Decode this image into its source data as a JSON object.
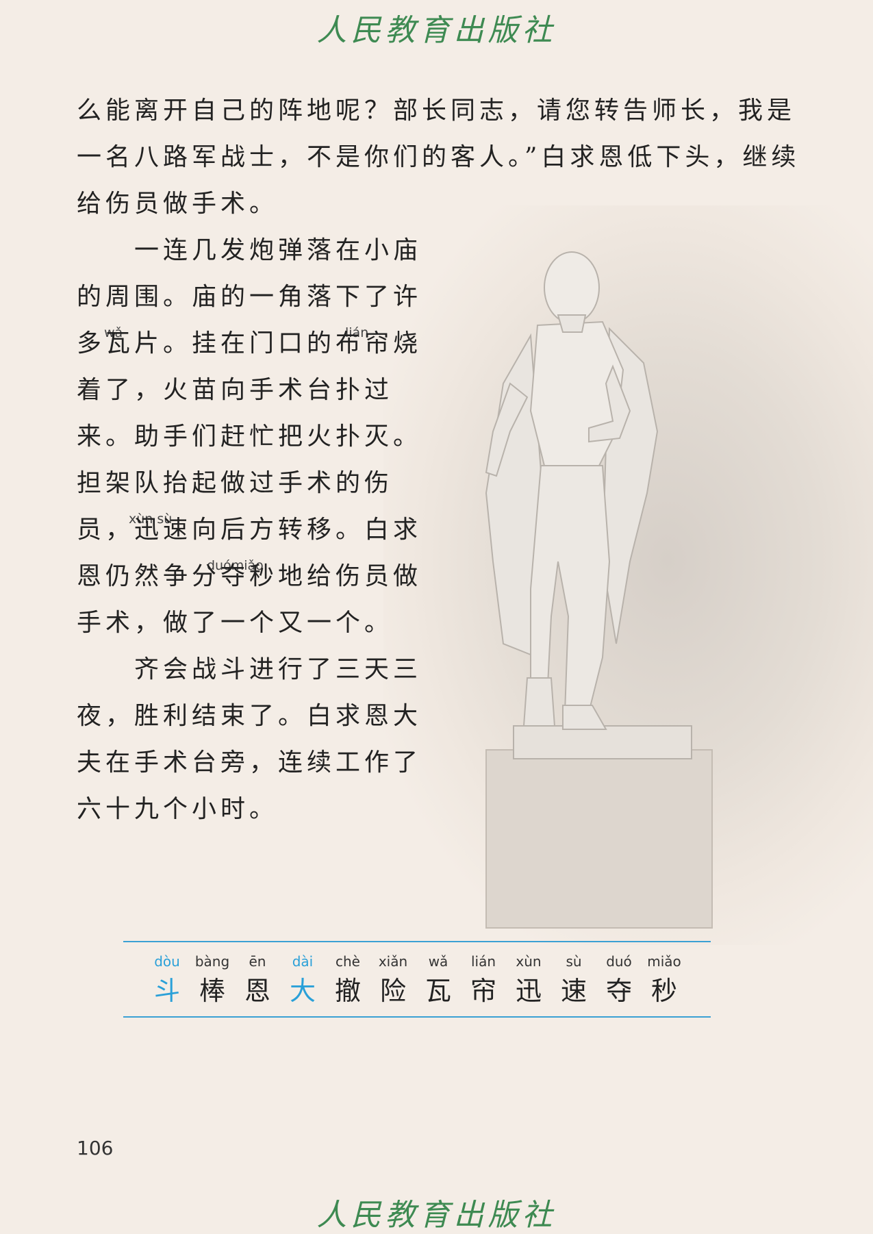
{
  "header": {
    "publisher": "人民教育出版社"
  },
  "photo": {
    "subject": "statue"
  },
  "paragraphs": {
    "lines": [
      "么能离开自己的阵地呢？部长同志，请您转告师长，我是",
      "一名八路军战士，不是你们的客人。”白求恩低下头，继续",
      "给伤员做手术。",
      "　　一连几发炮弹落在小庙",
      "的周围。庙的一角落下了许",
      "多瓦片。挂在门口的布帘烧",
      "着了，火苗向手术台扑过",
      "来。助手们赶忙把火扑灭。",
      "担架队抬起做过手术的伤",
      "员，迅速向后方转移。白求",
      "恩仍然争分夺秒地给伤员做",
      "手术，做了一个又一个。",
      "　　齐会战斗进行了三天三",
      "夜，胜利结束了。白求恩大",
      "夫在手术台旁，连续工作了",
      "六十九个小时。"
    ],
    "annotations": {
      "wa": "wǎ",
      "lian": "lián",
      "xunsu": "xùn sù",
      "duomiao": "duómiǎo"
    }
  },
  "vocabulary": [
    {
      "pinyin": "dòu",
      "char": "斗"
    },
    {
      "pinyin": "bàng",
      "char": "棒"
    },
    {
      "pinyin": "ēn",
      "char": "恩"
    },
    {
      "pinyin": "dài",
      "char": "大"
    },
    {
      "pinyin": "chè",
      "char": "撤"
    },
    {
      "pinyin": "xiǎn",
      "char": "险"
    },
    {
      "pinyin": "wǎ",
      "char": "瓦"
    },
    {
      "pinyin": "lián",
      "char": "帘"
    },
    {
      "pinyin": "xùn",
      "char": "迅"
    },
    {
      "pinyin": "sù",
      "char": "速"
    },
    {
      "pinyin": "duó",
      "char": "夺"
    },
    {
      "pinyin": "miǎo",
      "char": "秒"
    }
  ],
  "footer": {
    "page_number": "106",
    "publisher": "人民教育出版社"
  },
  "colors": {
    "highlight": "#2aa0d8",
    "publisher": "#3e8a52",
    "background": "#f4ede6"
  }
}
